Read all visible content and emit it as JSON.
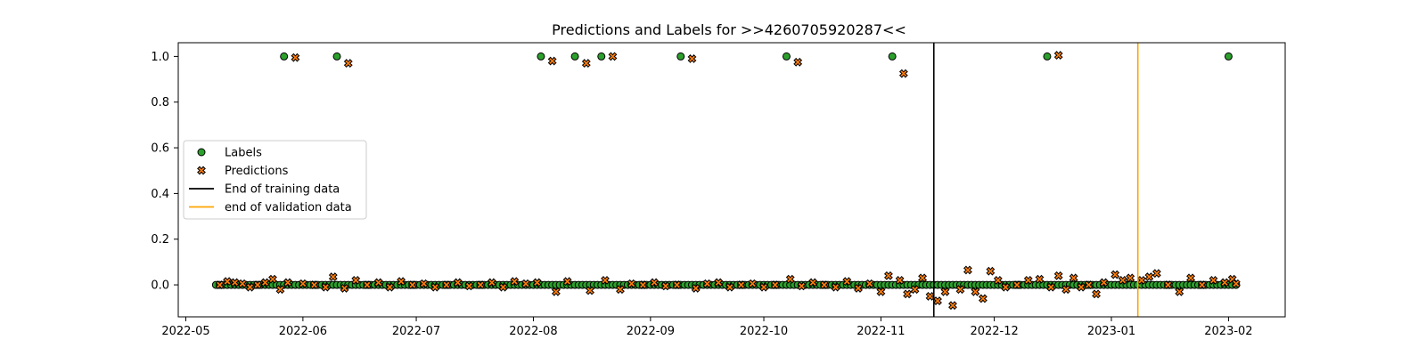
{
  "chart_data": {
    "type": "scatter",
    "title": "Predictions and Labels for >>4260705920287<<",
    "xlabel": "",
    "ylabel": "",
    "x_range": [
      "2022-04-29",
      "2023-02-16"
    ],
    "ylim": [
      -0.14,
      1.06
    ],
    "x_ticks": [
      "2022-05",
      "2022-06",
      "2022-07",
      "2022-08",
      "2022-09",
      "2022-10",
      "2022-11",
      "2022-12",
      "2023-01",
      "2023-02"
    ],
    "y_ticks": [
      "0.0",
      "0.2",
      "0.4",
      "0.6",
      "0.8",
      "1.0"
    ],
    "y_tick_values": [
      0.0,
      0.2,
      0.4,
      0.6,
      0.8,
      1.0
    ],
    "grid": false,
    "legend_position": "center-left",
    "colors": {
      "labels_fill": "#2ca02c",
      "predictions_fill": "#ff7f0e",
      "marker_edge": "#000000",
      "end_training": "#000000",
      "end_validation": "#ffa500"
    },
    "vlines": [
      {
        "name": "End of training data",
        "x": "2022-11-15",
        "color": "#000000"
      },
      {
        "name": "end of validation data",
        "x": "2023-01-08",
        "color": "#ffa500"
      }
    ],
    "series": [
      {
        "name": "Labels",
        "marker": "circle",
        "positive_dates": [
          "2022-05-27",
          "2022-06-10",
          "2022-08-03",
          "2022-08-12",
          "2022-08-19",
          "2022-09-09",
          "2022-10-07",
          "2022-11-04",
          "2022-12-15",
          "2023-02-01"
        ],
        "baseline_value": 0.0,
        "baseline_from": "2022-05-09",
        "baseline_to": "2023-02-03"
      },
      {
        "name": "Predictions",
        "marker": "x",
        "high_points": [
          {
            "x": "2022-05-30",
            "y": 0.995
          },
          {
            "x": "2022-06-13",
            "y": 0.97
          },
          {
            "x": "2022-08-06",
            "y": 0.98
          },
          {
            "x": "2022-08-15",
            "y": 0.97
          },
          {
            "x": "2022-08-22",
            "y": 1.0
          },
          {
            "x": "2022-09-12",
            "y": 0.99
          },
          {
            "x": "2022-10-10",
            "y": 0.975
          },
          {
            "x": "2022-11-07",
            "y": 0.925
          },
          {
            "x": "2022-12-18",
            "y": 1.005
          }
        ],
        "low_points": [
          {
            "x": "2022-05-10",
            "y": 0.0
          },
          {
            "x": "2022-05-12",
            "y": 0.015
          },
          {
            "x": "2022-05-14",
            "y": 0.01
          },
          {
            "x": "2022-05-16",
            "y": 0.005
          },
          {
            "x": "2022-05-18",
            "y": -0.01
          },
          {
            "x": "2022-05-20",
            "y": 0.0
          },
          {
            "x": "2022-05-22",
            "y": 0.01
          },
          {
            "x": "2022-05-24",
            "y": 0.025
          },
          {
            "x": "2022-05-26",
            "y": -0.02
          },
          {
            "x": "2022-05-28",
            "y": 0.01
          },
          {
            "x": "2022-06-01",
            "y": 0.005
          },
          {
            "x": "2022-06-04",
            "y": 0.0
          },
          {
            "x": "2022-06-07",
            "y": -0.01
          },
          {
            "x": "2022-06-09",
            "y": 0.035
          },
          {
            "x": "2022-06-12",
            "y": -0.015
          },
          {
            "x": "2022-06-15",
            "y": 0.02
          },
          {
            "x": "2022-06-18",
            "y": 0.0
          },
          {
            "x": "2022-06-21",
            "y": 0.01
          },
          {
            "x": "2022-06-24",
            "y": -0.01
          },
          {
            "x": "2022-06-27",
            "y": 0.015
          },
          {
            "x": "2022-06-30",
            "y": 0.0
          },
          {
            "x": "2022-07-03",
            "y": 0.005
          },
          {
            "x": "2022-07-06",
            "y": -0.01
          },
          {
            "x": "2022-07-09",
            "y": 0.0
          },
          {
            "x": "2022-07-12",
            "y": 0.01
          },
          {
            "x": "2022-07-15",
            "y": -0.005
          },
          {
            "x": "2022-07-18",
            "y": 0.0
          },
          {
            "x": "2022-07-21",
            "y": 0.01
          },
          {
            "x": "2022-07-24",
            "y": -0.01
          },
          {
            "x": "2022-07-27",
            "y": 0.015
          },
          {
            "x": "2022-07-30",
            "y": 0.005
          },
          {
            "x": "2022-08-02",
            "y": 0.01
          },
          {
            "x": "2022-08-07",
            "y": -0.03
          },
          {
            "x": "2022-08-10",
            "y": 0.015
          },
          {
            "x": "2022-08-16",
            "y": -0.025
          },
          {
            "x": "2022-08-20",
            "y": 0.02
          },
          {
            "x": "2022-08-24",
            "y": -0.02
          },
          {
            "x": "2022-08-27",
            "y": 0.005
          },
          {
            "x": "2022-08-30",
            "y": 0.0
          },
          {
            "x": "2022-09-02",
            "y": 0.01
          },
          {
            "x": "2022-09-05",
            "y": -0.005
          },
          {
            "x": "2022-09-08",
            "y": 0.0
          },
          {
            "x": "2022-09-13",
            "y": -0.015
          },
          {
            "x": "2022-09-16",
            "y": 0.005
          },
          {
            "x": "2022-09-19",
            "y": 0.01
          },
          {
            "x": "2022-09-22",
            "y": -0.01
          },
          {
            "x": "2022-09-25",
            "y": 0.0
          },
          {
            "x": "2022-09-28",
            "y": 0.005
          },
          {
            "x": "2022-10-01",
            "y": -0.01
          },
          {
            "x": "2022-10-04",
            "y": 0.0
          },
          {
            "x": "2022-10-08",
            "y": 0.025
          },
          {
            "x": "2022-10-11",
            "y": -0.005
          },
          {
            "x": "2022-10-14",
            "y": 0.01
          },
          {
            "x": "2022-10-17",
            "y": 0.0
          },
          {
            "x": "2022-10-20",
            "y": -0.01
          },
          {
            "x": "2022-10-23",
            "y": 0.015
          },
          {
            "x": "2022-10-26",
            "y": -0.015
          },
          {
            "x": "2022-10-29",
            "y": 0.005
          },
          {
            "x": "2022-11-01",
            "y": -0.03
          },
          {
            "x": "2022-11-03",
            "y": 0.04
          },
          {
            "x": "2022-11-06",
            "y": 0.02
          },
          {
            "x": "2022-11-08",
            "y": -0.04
          },
          {
            "x": "2022-11-10",
            "y": -0.02
          },
          {
            "x": "2022-11-12",
            "y": 0.03
          },
          {
            "x": "2022-11-14",
            "y": -0.05
          },
          {
            "x": "2022-11-16",
            "y": -0.07
          },
          {
            "x": "2022-11-18",
            "y": -0.03
          },
          {
            "x": "2022-11-20",
            "y": -0.09
          },
          {
            "x": "2022-11-22",
            "y": -0.02
          },
          {
            "x": "2022-11-24",
            "y": 0.065
          },
          {
            "x": "2022-11-26",
            "y": -0.03
          },
          {
            "x": "2022-11-28",
            "y": -0.06
          },
          {
            "x": "2022-11-30",
            "y": 0.06
          },
          {
            "x": "2022-12-02",
            "y": 0.02
          },
          {
            "x": "2022-12-04",
            "y": -0.01
          },
          {
            "x": "2022-12-07",
            "y": 0.0
          },
          {
            "x": "2022-12-10",
            "y": 0.02
          },
          {
            "x": "2022-12-13",
            "y": 0.025
          },
          {
            "x": "2022-12-16",
            "y": -0.01
          },
          {
            "x": "2022-12-18",
            "y": 0.04
          },
          {
            "x": "2022-12-20",
            "y": -0.02
          },
          {
            "x": "2022-12-22",
            "y": 0.03
          },
          {
            "x": "2022-12-24",
            "y": -0.01
          },
          {
            "x": "2022-12-26",
            "y": 0.0
          },
          {
            "x": "2022-12-28",
            "y": -0.04
          },
          {
            "x": "2022-12-30",
            "y": 0.01
          },
          {
            "x": "2023-01-02",
            "y": 0.045
          },
          {
            "x": "2023-01-04",
            "y": 0.02
          },
          {
            "x": "2023-01-06",
            "y": 0.03
          },
          {
            "x": "2023-01-09",
            "y": 0.02
          },
          {
            "x": "2023-01-11",
            "y": 0.035
          },
          {
            "x": "2023-01-13",
            "y": 0.05
          },
          {
            "x": "2023-01-16",
            "y": 0.0
          },
          {
            "x": "2023-01-19",
            "y": -0.03
          },
          {
            "x": "2023-01-22",
            "y": 0.03
          },
          {
            "x": "2023-01-25",
            "y": 0.0
          },
          {
            "x": "2023-01-28",
            "y": 0.02
          },
          {
            "x": "2023-01-31",
            "y": 0.01
          },
          {
            "x": "2023-02-02",
            "y": 0.025
          },
          {
            "x": "2023-02-03",
            "y": 0.005
          }
        ]
      }
    ],
    "legend": [
      {
        "label": "Labels",
        "kind": "circle",
        "color": "#2ca02c"
      },
      {
        "label": "Predictions",
        "kind": "x",
        "color": "#ff7f0e"
      },
      {
        "label": "End of training data",
        "kind": "line",
        "color": "#000000"
      },
      {
        "label": "end of validation data",
        "kind": "line",
        "color": "#ffa500"
      }
    ]
  }
}
